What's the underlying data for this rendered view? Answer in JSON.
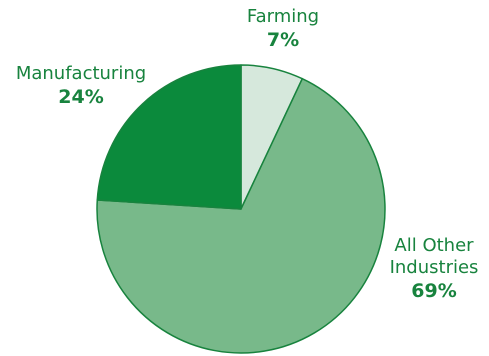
{
  "chart_data": {
    "type": "pie",
    "slices": [
      {
        "label": "Farming",
        "value": 7,
        "value_label": "7%",
        "color": "#d6e8dc"
      },
      {
        "label": "All Other Industries",
        "value": 69,
        "value_label": "69%",
        "color": "#78b98a"
      },
      {
        "label": "Manufacturing",
        "value": 24,
        "value_label": "24%",
        "color": "#0b8a3c"
      }
    ],
    "start_angle": "12 o'clock",
    "direction": "clockwise",
    "stroke_color": "#18833e",
    "label_color": "#18833e"
  }
}
